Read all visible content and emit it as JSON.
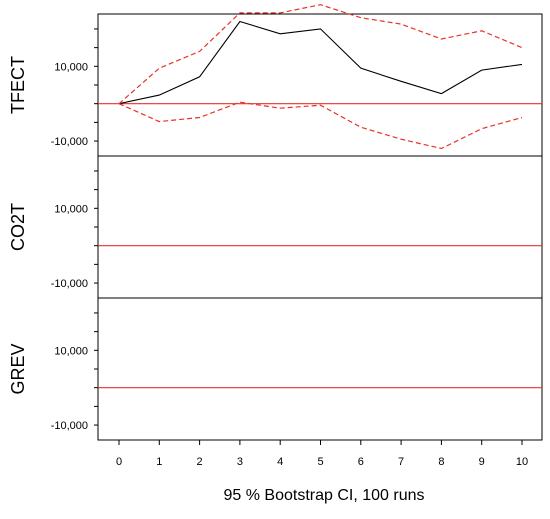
{
  "chart_data": {
    "type": "line",
    "xlabel": "95 % Bootstrap CI,  100 runs",
    "x": [
      0,
      1,
      2,
      3,
      4,
      5,
      6,
      7,
      8,
      9,
      10
    ],
    "x_tick_labels": [
      "0",
      "1",
      "2",
      "3",
      "4",
      "5",
      "6",
      "7",
      "8",
      "9",
      "10"
    ],
    "ylim": [
      -14000,
      24000
    ],
    "y_tick_labels": [
      "10,000",
      "-10,000"
    ],
    "y_tick_label_values": [
      10000,
      -10000
    ],
    "y_minor_ticks": [
      -10000,
      -5000,
      0,
      5000,
      10000,
      15000,
      20000
    ],
    "zero_line_color": "#e8322b",
    "response_color": "#000000",
    "ci_color": "#e8322b",
    "ci_style": "dashed",
    "grid": false,
    "panels": [
      {
        "label": "TFECT",
        "series": [
          {
            "role": "response",
            "values": [
              0,
              2300,
              7200,
              22000,
              18700,
              20000,
              9500,
              6000,
              2700,
              9000,
              10500
            ]
          },
          {
            "role": "ci_upper",
            "values": [
              0,
              9500,
              14000,
              24300,
              24300,
              26500,
              23000,
              21300,
              17300,
              19500,
              15000
            ]
          },
          {
            "role": "ci_lower",
            "values": [
              0,
              -4800,
              -3700,
              400,
              -1200,
              -400,
              -6300,
              -9500,
              -12000,
              -6700,
              -3700
            ]
          }
        ]
      },
      {
        "label": "CO2T",
        "series": []
      },
      {
        "label": "GREV",
        "series": []
      }
    ]
  }
}
